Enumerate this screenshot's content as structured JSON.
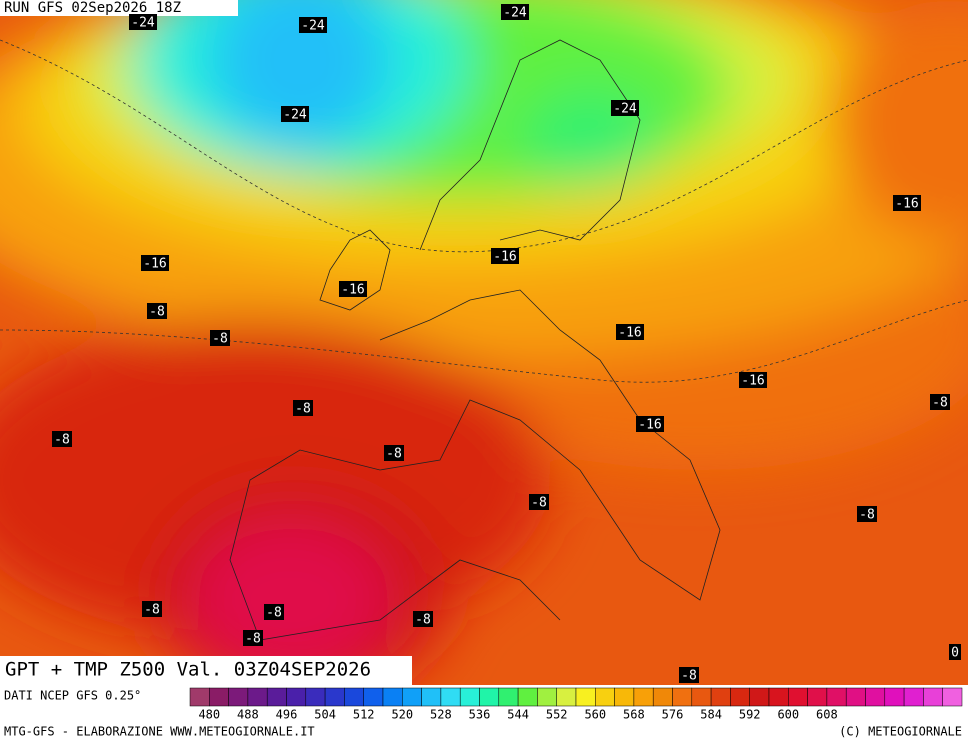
{
  "header": {
    "run": "RUN GFS 02Sep2026 18Z"
  },
  "map": {
    "title": "GPT + TMP Z500 Val. 03Z04SEP2026",
    "contour_labels": [
      "-24",
      "-24",
      "-24",
      "-24",
      "-24",
      "-16",
      "-16",
      "-16",
      "-16",
      "-16",
      "-16",
      "-16",
      "-8",
      "-8",
      "-8",
      "-8",
      "-8",
      "-8",
      "-8",
      "-8",
      "-8",
      "-8",
      "-8",
      "-8",
      "-8",
      "0"
    ]
  },
  "legend": {
    "source": "DATI NCEP GFS 0.25°",
    "ticks": [
      480,
      488,
      496,
      504,
      512,
      520,
      528,
      536,
      544,
      552,
      560,
      568,
      576,
      584,
      592,
      600,
      608
    ],
    "colors": [
      "#a03a6a",
      "#8a1c66",
      "#7c1a7a",
      "#6c1a8a",
      "#5a1c9a",
      "#4a20aa",
      "#3a2cbc",
      "#2a38cc",
      "#1a48dc",
      "#1060ec",
      "#0a80f4",
      "#10a0f8",
      "#20c0f8",
      "#30dcf4",
      "#28f0d8",
      "#20f4a8",
      "#30f070",
      "#60f040",
      "#a0f040",
      "#d8f040",
      "#f8f020",
      "#f8d010",
      "#f8b808",
      "#f8a008",
      "#f08808",
      "#f07010",
      "#e85810",
      "#e04010",
      "#d82810",
      "#d01818",
      "#d8141e",
      "#e01030",
      "#e0104a",
      "#e01066",
      "#e01084",
      "#e010a0",
      "#e010bc",
      "#e020d0",
      "#e840d8",
      "#f060e0"
    ]
  },
  "footer": {
    "left": "MTG-GFS - ELABORAZIONE WWW.METEOGIORNALE.IT",
    "right": "(C) METEOGIORNALE"
  }
}
